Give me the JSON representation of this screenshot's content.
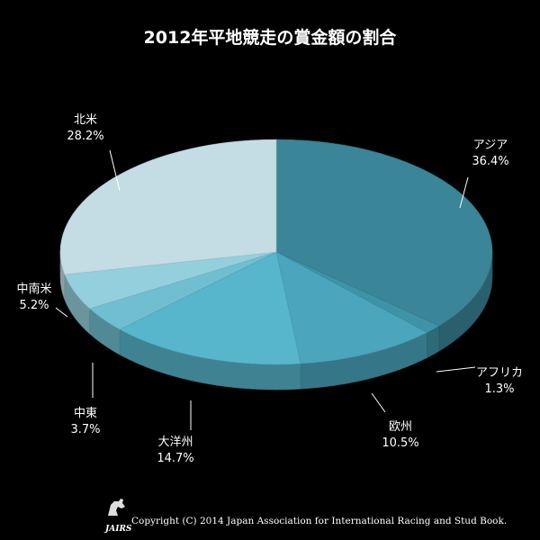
{
  "chart_data": {
    "type": "pie",
    "title": "2012年平地競走の賞金額の割合",
    "slices": [
      {
        "label": "アジア",
        "value": 36.4,
        "value_label": "36.4%",
        "color": "#3a8597"
      },
      {
        "label": "アフリカ",
        "value": 1.3,
        "value_label": "1.3%",
        "color": "#3e93a6"
      },
      {
        "label": "欧州",
        "value": 10.5,
        "value_label": "10.5%",
        "color": "#4aa5bd"
      },
      {
        "label": "大洋州",
        "value": 14.7,
        "value_label": "14.7%",
        "color": "#57b6cc"
      },
      {
        "label": "中東",
        "value": 3.7,
        "value_label": "3.7%",
        "color": "#6fbfd0"
      },
      {
        "label": "中南米",
        "value": 5.2,
        "value_label": "5.2%",
        "color": "#93cfdc"
      },
      {
        "label": "北米",
        "value": 28.2,
        "value_label": "28.2%",
        "color": "#c4dde4"
      }
    ]
  },
  "logo": {
    "text": "JAIRS"
  },
  "copyright": "Copyright (C) 2014 Japan Association for International Racing and Stud Book."
}
